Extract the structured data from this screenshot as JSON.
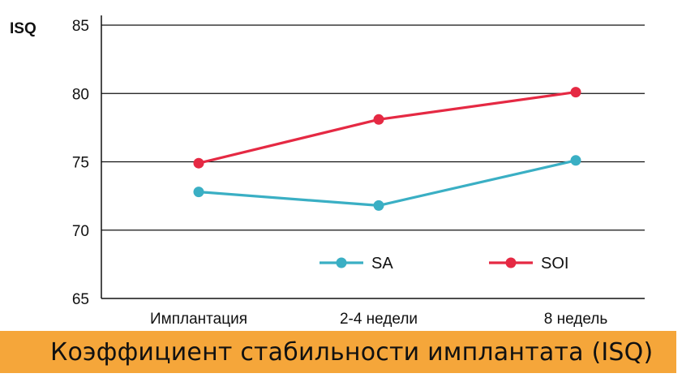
{
  "chart_data": {
    "type": "line",
    "title": "Коэффициент стабильности имплантата (ISQ)",
    "ylabel": "ISQ",
    "xlabel": "",
    "categories": [
      "Имплантация",
      "2-4 недели",
      "8 недель"
    ],
    "ylim": [
      65,
      85
    ],
    "yticks": [
      65,
      70,
      75,
      80,
      85
    ],
    "grid": true,
    "legend_position": "bottom-right inside plot",
    "series": [
      {
        "name": "SA",
        "color": "#3AAFC4",
        "values": [
          72.8,
          71.8,
          75.1
        ]
      },
      {
        "name": "SOI",
        "color": "#E52943",
        "values": [
          74.9,
          78.1,
          80.1
        ]
      }
    ]
  },
  "colors": {
    "title_bar": "#F5A63A",
    "axis": "#111111"
  }
}
